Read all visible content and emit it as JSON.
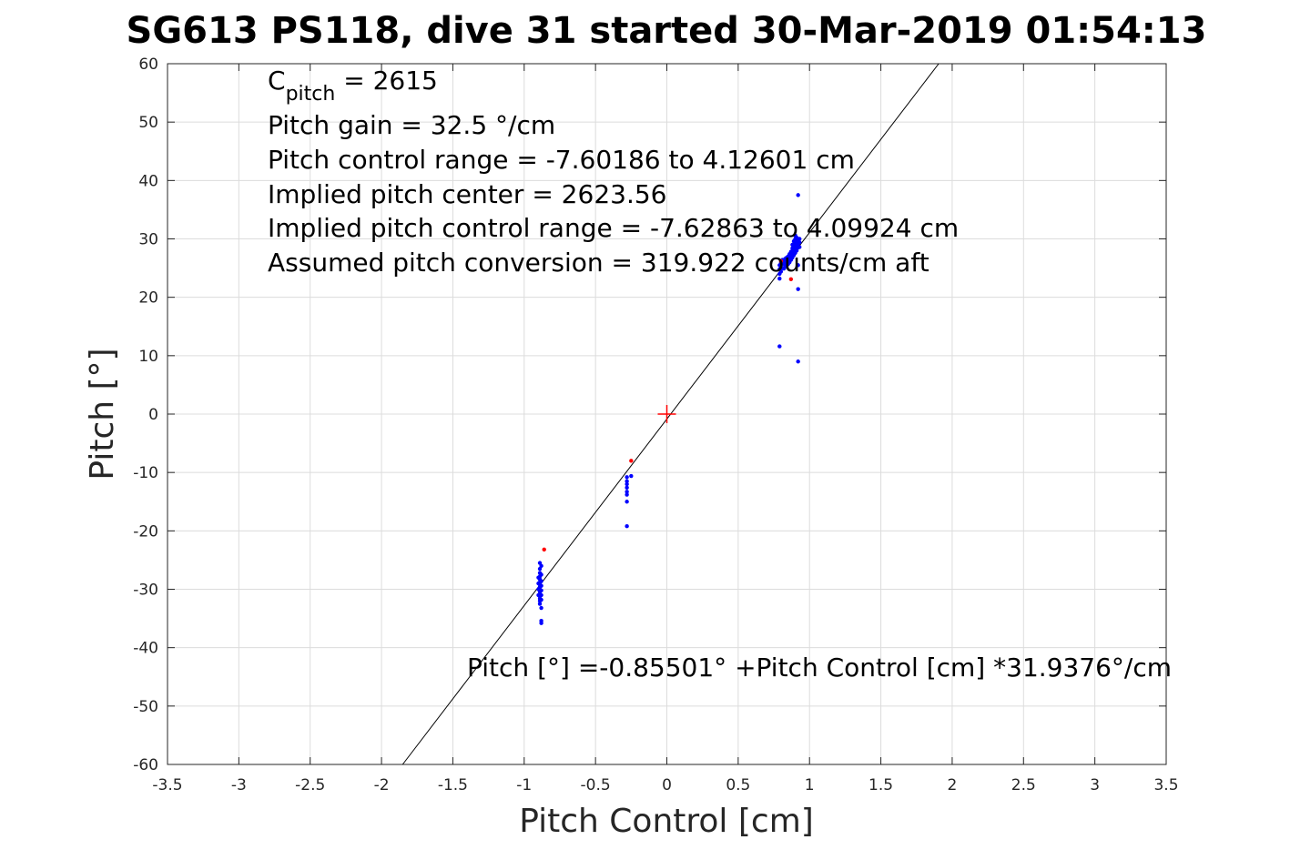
{
  "chart_data": {
    "type": "scatter",
    "title": "SG613 PS118, dive 31 started 30-Mar-2019 01:54:13",
    "xlabel": "Pitch Control [cm]",
    "ylabel": "Pitch [°]",
    "xlim": [
      -3.5,
      3.5
    ],
    "ylim": [
      -60,
      60
    ],
    "xticks": [
      -3.5,
      -3,
      -2.5,
      -2,
      -1.5,
      -1,
      -0.5,
      0,
      0.5,
      1,
      1.5,
      2,
      2.5,
      3,
      3.5
    ],
    "xtick_labels": [
      "-3.5",
      "-3",
      "-2.5",
      "-2",
      "-1.5",
      "-1",
      "-0.5",
      "0",
      "0.5",
      "1",
      "1.5",
      "2",
      "2.5",
      "3",
      "3.5"
    ],
    "yticks": [
      -60,
      -50,
      -40,
      -30,
      -20,
      -10,
      0,
      10,
      20,
      30,
      40,
      50,
      60
    ],
    "ytick_labels": [
      "-60",
      "-50",
      "-40",
      "-30",
      "-20",
      "-10",
      "0",
      "10",
      "20",
      "30",
      "40",
      "50",
      "60"
    ],
    "grid": true,
    "colors": {
      "included": "#0000ff",
      "excluded": "#ff0000",
      "fit": "#000000",
      "center": "#ff0000"
    },
    "annotations": {
      "c_pitch_symbol": "C",
      "c_pitch_subscript": "pitch",
      "c_pitch_value": " = 2615",
      "pitch_gain": "Pitch gain = 32.5 °/cm",
      "control_range": "Pitch control range = -7.60186 to 4.12601 cm",
      "implied_center": "Implied pitch center = 2623.56",
      "implied_range": "Implied pitch control range = -7.62863 to 4.09924 cm",
      "conversion": "Assumed pitch conversion = 319.922 counts/cm aft",
      "fit_equation": "Pitch [°] =-0.85501° +Pitch Control [cm] *31.9376°/cm"
    },
    "fit_line": {
      "intercept": -0.85501,
      "slope": 31.9376
    },
    "center_marker": {
      "x": 0,
      "y": 0
    },
    "series": [
      {
        "color": "#0000ff",
        "points": [
          [
            -0.89,
            -25.5
          ],
          [
            -0.89,
            -26.5
          ],
          [
            -0.89,
            -27.2
          ],
          [
            -0.89,
            -27.8
          ],
          [
            -0.89,
            -28.3
          ],
          [
            -0.89,
            -28.8
          ],
          [
            -0.89,
            -29.2
          ],
          [
            -0.89,
            -29.6
          ],
          [
            -0.89,
            -30.0
          ],
          [
            -0.89,
            -30.4
          ],
          [
            -0.89,
            -30.8
          ],
          [
            -0.89,
            -31.2
          ],
          [
            -0.89,
            -31.6
          ],
          [
            -0.89,
            -32.0
          ],
          [
            -0.89,
            -32.5
          ],
          [
            -0.88,
            -26.0
          ],
          [
            -0.88,
            -27.5
          ],
          [
            -0.88,
            -28.6
          ],
          [
            -0.88,
            -29.4
          ],
          [
            -0.88,
            -30.2
          ],
          [
            -0.88,
            -31.0
          ],
          [
            -0.88,
            -31.8
          ],
          [
            -0.88,
            -33.2
          ],
          [
            -0.88,
            -35.4
          ],
          [
            -0.88,
            -35.8
          ],
          [
            -0.9,
            -28.0
          ],
          [
            -0.9,
            -29.0
          ],
          [
            -0.9,
            -30.0
          ],
          [
            -0.9,
            -31.0
          ],
          [
            -0.28,
            -10.8
          ],
          [
            -0.28,
            -11.5
          ],
          [
            -0.28,
            -12.0
          ],
          [
            -0.28,
            -12.6
          ],
          [
            -0.28,
            -13.3
          ],
          [
            -0.28,
            -13.8
          ],
          [
            -0.28,
            -15.0
          ],
          [
            -0.28,
            -19.2
          ],
          [
            -0.25,
            -10.6
          ],
          [
            0.79,
            11.6
          ],
          [
            0.79,
            23.2
          ],
          [
            0.79,
            24.0
          ],
          [
            0.79,
            24.8
          ],
          [
            0.79,
            25.5
          ],
          [
            0.8,
            24.4
          ],
          [
            0.8,
            25.2
          ],
          [
            0.8,
            26.0
          ],
          [
            0.81,
            25.0
          ],
          [
            0.81,
            25.8
          ],
          [
            0.81,
            26.4
          ],
          [
            0.82,
            24.9
          ],
          [
            0.82,
            25.7
          ],
          [
            0.82,
            26.3
          ],
          [
            0.83,
            25.2
          ],
          [
            0.83,
            26.0
          ],
          [
            0.83,
            26.6
          ],
          [
            0.84,
            25.4
          ],
          [
            0.84,
            26.2
          ],
          [
            0.84,
            26.8
          ],
          [
            0.85,
            25.7
          ],
          [
            0.85,
            26.5
          ],
          [
            0.85,
            27.0
          ],
          [
            0.86,
            26.0
          ],
          [
            0.86,
            26.8
          ],
          [
            0.86,
            27.4
          ],
          [
            0.87,
            26.4
          ],
          [
            0.87,
            27.2
          ],
          [
            0.87,
            27.8
          ],
          [
            0.88,
            26.8
          ],
          [
            0.88,
            27.6
          ],
          [
            0.88,
            28.4
          ],
          [
            0.88,
            29.0
          ],
          [
            0.89,
            27.2
          ],
          [
            0.89,
            28.0
          ],
          [
            0.89,
            28.8
          ],
          [
            0.89,
            29.6
          ],
          [
            0.9,
            27.6
          ],
          [
            0.9,
            28.4
          ],
          [
            0.9,
            29.2
          ],
          [
            0.9,
            30.0
          ],
          [
            0.9,
            30.6
          ],
          [
            0.91,
            28.0
          ],
          [
            0.91,
            28.8
          ],
          [
            0.91,
            29.5
          ],
          [
            0.91,
            30.2
          ],
          [
            0.92,
            28.5
          ],
          [
            0.92,
            29.2
          ],
          [
            0.92,
            29.8
          ],
          [
            0.92,
            25.5
          ],
          [
            0.92,
            21.4
          ],
          [
            0.92,
            9.0
          ],
          [
            0.93,
            28.6
          ],
          [
            0.93,
            29.4
          ],
          [
            0.93,
            30.0
          ],
          [
            0.92,
            37.5
          ]
        ]
      },
      {
        "color": "#ff0000",
        "points": [
          [
            -0.86,
            -23.2
          ],
          [
            -0.25,
            -8.0
          ],
          [
            0.87,
            23.1
          ],
          [
            0.8,
            26.2
          ]
        ]
      }
    ]
  }
}
